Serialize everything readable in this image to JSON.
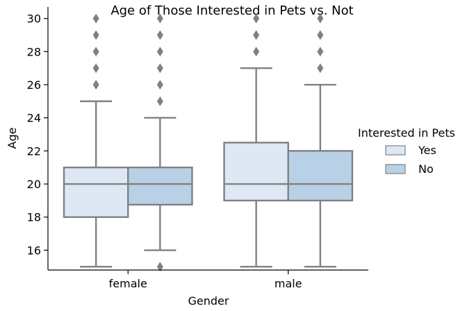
{
  "chart_data": {
    "type": "box",
    "title": "Age of Those Interested in Pets vs. Not",
    "xlabel": "Gender",
    "ylabel": "Age",
    "categories": [
      "female",
      "male"
    ],
    "ylim": [
      14.8,
      30.7
    ],
    "yticks": [
      16,
      18,
      20,
      22,
      24,
      26,
      28,
      30
    ],
    "grid": false,
    "legend": {
      "title": "Interested in Pets",
      "position": "right"
    },
    "series": [
      {
        "name": "Yes",
        "color": "#dde8f4",
        "boxes": [
          {
            "category": "female",
            "whisker_low": 15,
            "q1": 18,
            "median": 20,
            "q3": 21,
            "whisker_high": 25,
            "outliers": [
              26,
              27,
              28,
              29,
              30
            ]
          },
          {
            "category": "male",
            "whisker_low": 15,
            "q1": 19,
            "median": 20,
            "q3": 22.5,
            "whisker_high": 27,
            "outliers": [
              28,
              29,
              30
            ]
          }
        ]
      },
      {
        "name": "No",
        "color": "#b9d1e6",
        "boxes": [
          {
            "category": "female",
            "whisker_low": 16,
            "q1": 18.75,
            "median": 20,
            "q3": 21,
            "whisker_high": 24,
            "outliers": [
              15,
              25,
              26,
              27,
              28,
              29,
              30
            ]
          },
          {
            "category": "male",
            "whisker_low": 15,
            "q1": 19,
            "median": 20,
            "q3": 22,
            "whisker_high": 26,
            "outliers": [
              27,
              28,
              29,
              30
            ]
          }
        ]
      }
    ]
  }
}
